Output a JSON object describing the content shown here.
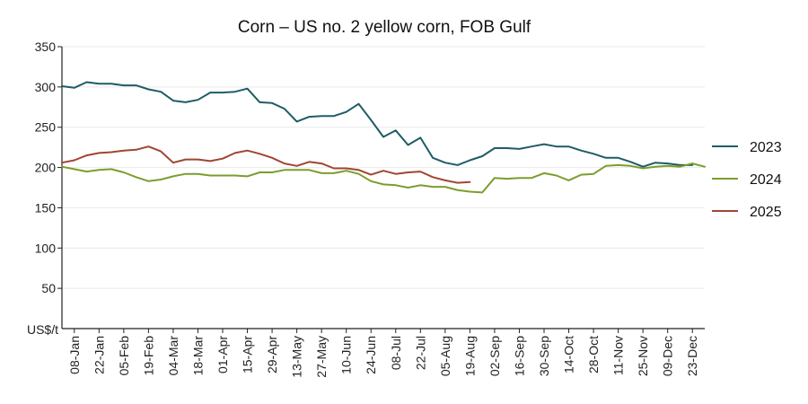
{
  "chart_data": {
    "type": "line",
    "title": "Corn – US no. 2 yellow corn, FOB Gulf",
    "ylabel": "US$/t",
    "xlabel": "",
    "ylim": [
      0,
      350
    ],
    "yticks": [
      50,
      100,
      150,
      200,
      250,
      300,
      350
    ],
    "grid": "horizontal",
    "legend_position": "right",
    "x_tick_labels": [
      "08-Jan",
      "22-Jan",
      "05-Feb",
      "19-Feb",
      "04-Mar",
      "18-Mar",
      "01-Apr",
      "15-Apr",
      "29-Apr",
      "13-May",
      "27-May",
      "10-Jun",
      "24-Jun",
      "08-Jul",
      "22-Jul",
      "05-Aug",
      "19-Aug",
      "02-Sep",
      "16-Sep",
      "30-Sep",
      "14-Oct",
      "28-Oct",
      "11-Nov",
      "25-Nov",
      "09-Dec",
      "23-Dec"
    ],
    "x_weeks": [
      "01-Jan",
      "08-Jan",
      "15-Jan",
      "22-Jan",
      "29-Jan",
      "05-Feb",
      "12-Feb",
      "19-Feb",
      "26-Feb",
      "04-Mar",
      "11-Mar",
      "18-Mar",
      "25-Mar",
      "01-Apr",
      "08-Apr",
      "15-Apr",
      "22-Apr",
      "29-Apr",
      "06-May",
      "13-May",
      "20-May",
      "27-May",
      "03-Jun",
      "10-Jun",
      "17-Jun",
      "24-Jun",
      "01-Jul",
      "08-Jul",
      "15-Jul",
      "22-Jul",
      "29-Jul",
      "05-Aug",
      "12-Aug",
      "19-Aug",
      "26-Aug",
      "02-Sep",
      "09-Sep",
      "16-Sep",
      "23-Sep",
      "30-Sep",
      "07-Oct",
      "14-Oct",
      "21-Oct",
      "28-Oct",
      "04-Nov",
      "11-Nov",
      "18-Nov",
      "25-Nov",
      "02-Dec",
      "09-Dec",
      "16-Dec",
      "23-Dec",
      "30-Dec"
    ],
    "series": [
      {
        "name": "2023",
        "color": "#1f5c66",
        "values": [
          301,
          299,
          306,
          304,
          304,
          302,
          302,
          297,
          294,
          283,
          281,
          284,
          293,
          293,
          294,
          298,
          281,
          280,
          273,
          257,
          263,
          264,
          264,
          269,
          279,
          259,
          238,
          246,
          228,
          237,
          212,
          206,
          203,
          209,
          214,
          224,
          224,
          223,
          226,
          229,
          226,
          226,
          221,
          217,
          212,
          212,
          207,
          201,
          206,
          205,
          203,
          203
        ]
      },
      {
        "name": "2024",
        "color": "#7a9e2e",
        "values": [
          201,
          198,
          195,
          197,
          198,
          194,
          188,
          183,
          185,
          189,
          192,
          192,
          190,
          190,
          190,
          189,
          194,
          194,
          197,
          197,
          197,
          193,
          193,
          196,
          192,
          183,
          179,
          178,
          175,
          178,
          176,
          176,
          172,
          170,
          169,
          187,
          186,
          187,
          187,
          193,
          190,
          184,
          191,
          192,
          202,
          203,
          202,
          199,
          201,
          202,
          201,
          205,
          201
        ]
      },
      {
        "name": "2025",
        "color": "#a04533",
        "values": [
          206,
          209,
          215,
          218,
          219,
          221,
          222,
          226,
          220,
          206,
          210,
          210,
          208,
          211,
          218,
          221,
          217,
          212,
          205,
          202,
          207,
          205,
          199,
          199,
          197,
          191,
          196,
          192,
          194,
          195,
          188,
          184,
          181,
          182
        ]
      }
    ]
  }
}
